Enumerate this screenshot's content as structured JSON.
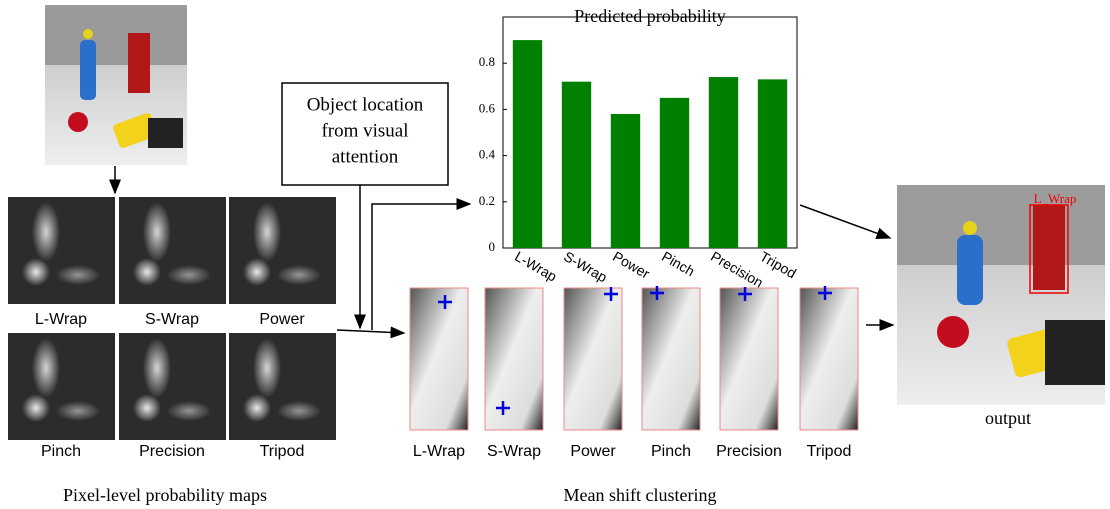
{
  "chart_data": {
    "type": "bar",
    "title": "Predicted probability",
    "categories": [
      "L-Wrap",
      "S-Wrap",
      "Power",
      "Pinch",
      "Precision",
      "Tripod"
    ],
    "values": [
      0.9,
      0.72,
      0.58,
      0.65,
      0.74,
      0.73
    ],
    "color": "#007f00",
    "ylim": [
      0,
      1
    ],
    "yticks": [
      0,
      0.2,
      0.4,
      0.6,
      0.8
    ]
  },
  "attention_box": [
    "Object location",
    "from visual",
    "attention"
  ],
  "prob_maps": [
    "L-Wrap",
    "S-Wrap",
    "Power",
    "Pinch",
    "Precision",
    "Tripod"
  ],
  "prob_maps_caption": "Pixel-level probability maps",
  "clusters": [
    "L-Wrap",
    "S-Wrap",
    "Power",
    "Pinch",
    "Precision",
    "Tripod"
  ],
  "clusters_caption": "Mean shift clustering",
  "detection_label": "L_Wrap",
  "output_caption": "output"
}
